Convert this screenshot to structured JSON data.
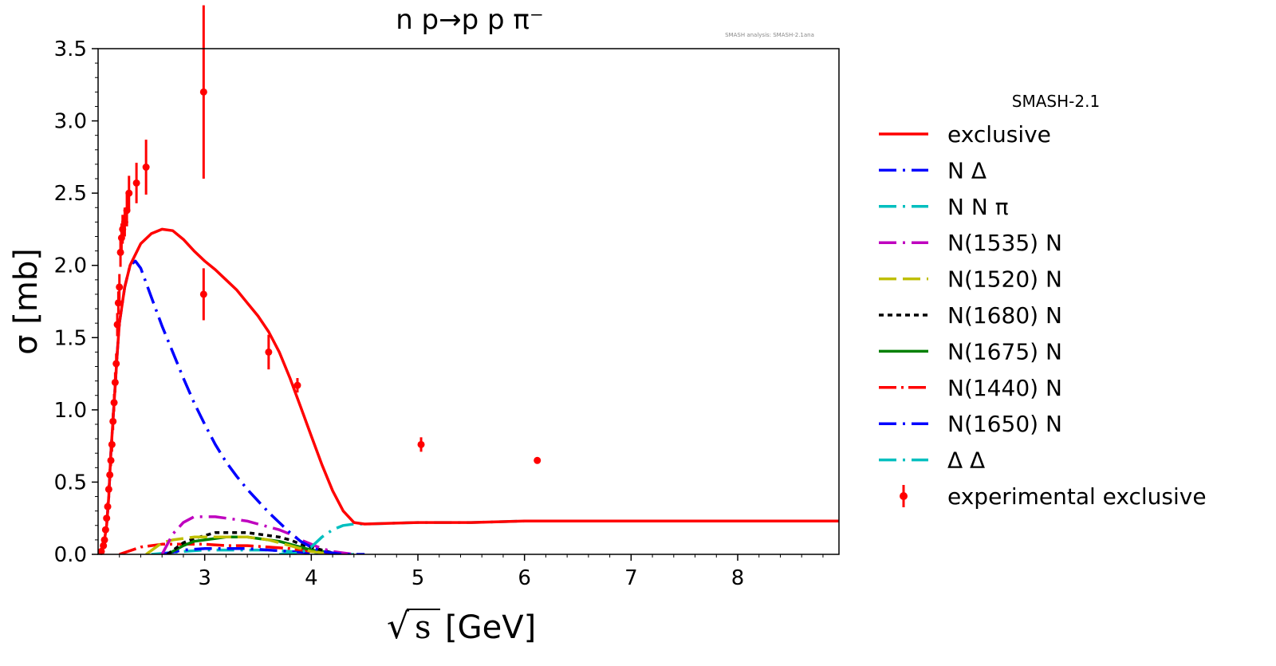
{
  "chart_data": {
    "type": "line",
    "title": "n p→p p π⁻",
    "watermark": "SMASH analysis: SMASH-2.1ana",
    "xlabel_root": "√",
    "xlabel_s": "s",
    "xlabel_unit": "[GeV]",
    "ylabel": "σ [mb]",
    "xlim": [
      2.0,
      8.95
    ],
    "ylim": [
      0.0,
      3.5
    ],
    "x_ticks": [
      3,
      4,
      5,
      6,
      7,
      8
    ],
    "x_tick_labels": [
      "3",
      "4",
      "5",
      "6",
      "7",
      "8"
    ],
    "y_ticks": [
      0.0,
      0.5,
      1.0,
      1.5,
      2.0,
      2.5,
      3.0,
      3.5
    ],
    "y_tick_labels": [
      "0.0",
      "0.5",
      "1.0",
      "1.5",
      "2.0",
      "2.5",
      "3.0",
      "3.5"
    ],
    "legend_title": "SMASH-2.1",
    "series": [
      {
        "name": "exclusive",
        "color": "#ff0000",
        "dash": "solid",
        "width": 3.5,
        "x": [
          2.02,
          2.05,
          2.08,
          2.1,
          2.12,
          2.15,
          2.18,
          2.2,
          2.25,
          2.3,
          2.4,
          2.5,
          2.6,
          2.7,
          2.8,
          2.9,
          3.0,
          3.1,
          3.2,
          3.3,
          3.4,
          3.5,
          3.6,
          3.7,
          3.8,
          3.9,
          4.0,
          4.1,
          4.2,
          4.3,
          4.4,
          4.5,
          5.0,
          5.5,
          6.0,
          6.5,
          7.0,
          7.5,
          8.0,
          8.5,
          8.95
        ],
        "y": [
          0.0,
          0.05,
          0.2,
          0.4,
          0.7,
          1.05,
          1.4,
          1.6,
          1.85,
          2.0,
          2.15,
          2.22,
          2.25,
          2.24,
          2.18,
          2.1,
          2.03,
          1.97,
          1.9,
          1.83,
          1.74,
          1.65,
          1.54,
          1.4,
          1.22,
          1.02,
          0.82,
          0.62,
          0.44,
          0.3,
          0.22,
          0.21,
          0.22,
          0.22,
          0.23,
          0.23,
          0.23,
          0.23,
          0.23,
          0.23,
          0.23
        ]
      },
      {
        "name": "N Δ",
        "color": "#0000ff",
        "dash": "dashdot",
        "width": 3.5,
        "x": [
          2.02,
          2.05,
          2.08,
          2.1,
          2.12,
          2.15,
          2.18,
          2.2,
          2.25,
          2.3,
          2.35,
          2.4,
          2.5,
          2.6,
          2.7,
          2.8,
          2.9,
          3.0,
          3.1,
          3.2,
          3.3,
          3.4,
          3.5,
          3.6,
          3.7,
          3.8,
          3.9,
          4.0,
          4.1,
          4.2,
          4.3,
          4.4,
          4.5
        ],
        "y": [
          0.0,
          0.05,
          0.2,
          0.4,
          0.7,
          1.05,
          1.4,
          1.6,
          1.85,
          2.0,
          2.03,
          1.98,
          1.78,
          1.58,
          1.4,
          1.22,
          1.05,
          0.9,
          0.76,
          0.64,
          0.54,
          0.45,
          0.37,
          0.29,
          0.22,
          0.15,
          0.09,
          0.05,
          0.02,
          0.01,
          0.0,
          0.0,
          0.0
        ]
      },
      {
        "name": "N N π",
        "color": "#00bfbf",
        "dash": "dashdot",
        "width": 3.5,
        "x": [
          3.7,
          3.9,
          4.0,
          4.1,
          4.2,
          4.3,
          4.4,
          4.5,
          5.0,
          5.5,
          6.0,
          6.5,
          7.0,
          7.5,
          8.0,
          8.5,
          8.95
        ],
        "y": [
          0.0,
          0.01,
          0.05,
          0.12,
          0.17,
          0.2,
          0.21,
          0.21,
          0.22,
          0.22,
          0.23,
          0.23,
          0.23,
          0.23,
          0.23,
          0.23,
          0.23
        ]
      },
      {
        "name": "N(1535) N",
        "color": "#bf00bf",
        "dash": "dashdot",
        "width": 3.5,
        "x": [
          2.6,
          2.7,
          2.8,
          2.9,
          3.0,
          3.1,
          3.2,
          3.3,
          3.4,
          3.5,
          3.6,
          3.7,
          3.8,
          3.9,
          4.0,
          4.1,
          4.2,
          4.3,
          4.4
        ],
        "y": [
          0.0,
          0.14,
          0.22,
          0.26,
          0.26,
          0.26,
          0.25,
          0.24,
          0.23,
          0.21,
          0.19,
          0.17,
          0.14,
          0.1,
          0.07,
          0.04,
          0.02,
          0.01,
          0.0
        ]
      },
      {
        "name": "N(1520) N",
        "color": "#bfbf00",
        "dash": "dashed",
        "width": 3.5,
        "x": [
          2.45,
          2.6,
          2.7,
          2.8,
          2.9,
          3.0,
          3.1,
          3.2,
          3.3,
          3.4,
          3.5,
          3.6,
          3.7,
          3.8,
          3.9,
          4.0,
          4.1,
          4.2
        ],
        "y": [
          0.0,
          0.08,
          0.1,
          0.11,
          0.12,
          0.12,
          0.12,
          0.12,
          0.12,
          0.12,
          0.11,
          0.1,
          0.08,
          0.06,
          0.04,
          0.02,
          0.01,
          0.0
        ]
      },
      {
        "name": "N(1680) N",
        "color": "#000000",
        "dash": "dotted",
        "width": 3.5,
        "x": [
          2.65,
          2.8,
          2.9,
          3.0,
          3.1,
          3.2,
          3.3,
          3.4,
          3.5,
          3.6,
          3.7,
          3.8,
          3.9,
          4.0,
          4.1,
          4.2,
          4.3
        ],
        "y": [
          0.0,
          0.08,
          0.11,
          0.13,
          0.15,
          0.15,
          0.15,
          0.15,
          0.14,
          0.13,
          0.12,
          0.1,
          0.07,
          0.05,
          0.03,
          0.01,
          0.0
        ]
      },
      {
        "name": "N(1675) N",
        "color": "#008000",
        "dash": "solid",
        "width": 3.5,
        "x": [
          2.65,
          2.8,
          2.9,
          3.0,
          3.1,
          3.2,
          3.3,
          3.4,
          3.5,
          3.6,
          3.7,
          3.8,
          3.9,
          4.0,
          4.1,
          4.2,
          4.3
        ],
        "y": [
          0.0,
          0.06,
          0.09,
          0.1,
          0.11,
          0.12,
          0.12,
          0.12,
          0.11,
          0.1,
          0.09,
          0.07,
          0.05,
          0.03,
          0.02,
          0.01,
          0.0
        ]
      },
      {
        "name": "N(1440) N",
        "color": "#ff0000",
        "dash": "dashdotted",
        "width": 3.5,
        "x": [
          2.2,
          2.4,
          2.6,
          2.8,
          3.0,
          3.2,
          3.4,
          3.6,
          3.8,
          4.0,
          4.2,
          4.4
        ],
        "y": [
          0.0,
          0.05,
          0.07,
          0.07,
          0.07,
          0.06,
          0.06,
          0.05,
          0.04,
          0.02,
          0.01,
          0.0
        ]
      },
      {
        "name": "N(1650) N",
        "color": "#0000ff",
        "dash": "dashdot",
        "width": 3.5,
        "x": [
          2.6,
          2.8,
          3.0,
          3.2,
          3.4,
          3.6,
          3.8,
          4.0,
          4.2
        ],
        "y": [
          0.0,
          0.03,
          0.04,
          0.04,
          0.04,
          0.03,
          0.02,
          0.01,
          0.0
        ]
      },
      {
        "name": "Δ Δ",
        "color": "#00bfbf",
        "dash": "dashdot",
        "width": 3.5,
        "x": [
          2.5,
          2.8,
          3.0,
          3.2,
          3.4,
          3.6,
          3.8,
          4.0,
          4.2,
          4.4
        ],
        "y": [
          0.0,
          0.02,
          0.03,
          0.03,
          0.03,
          0.03,
          0.02,
          0.01,
          0.0,
          0.0
        ]
      }
    ],
    "experimental": {
      "name": "experimental exclusive",
      "color": "#ff0000",
      "points": [
        {
          "x": 2.03,
          "y": 0.02,
          "err": 0.01
        },
        {
          "x": 2.05,
          "y": 0.06,
          "err": 0.01
        },
        {
          "x": 2.06,
          "y": 0.1,
          "err": 0.01
        },
        {
          "x": 2.07,
          "y": 0.17,
          "err": 0.02
        },
        {
          "x": 2.08,
          "y": 0.25,
          "err": 0.02
        },
        {
          "x": 2.09,
          "y": 0.33,
          "err": 0.03
        },
        {
          "x": 2.1,
          "y": 0.45,
          "err": 0.03
        },
        {
          "x": 2.11,
          "y": 0.55,
          "err": 0.04
        },
        {
          "x": 2.12,
          "y": 0.65,
          "err": 0.04
        },
        {
          "x": 2.13,
          "y": 0.76,
          "err": 0.05
        },
        {
          "x": 2.14,
          "y": 0.92,
          "err": 0.06
        },
        {
          "x": 2.15,
          "y": 1.05,
          "err": 0.06
        },
        {
          "x": 2.16,
          "y": 1.19,
          "err": 0.07
        },
        {
          "x": 2.17,
          "y": 1.32,
          "err": 0.07
        },
        {
          "x": 2.18,
          "y": 1.59,
          "err": 0.08
        },
        {
          "x": 2.19,
          "y": 1.74,
          "err": 0.08
        },
        {
          "x": 2.2,
          "y": 1.85,
          "err": 0.09
        },
        {
          "x": 2.21,
          "y": 2.09,
          "err": 0.1
        },
        {
          "x": 2.22,
          "y": 2.19,
          "err": 0.1
        },
        {
          "x": 2.23,
          "y": 2.25,
          "err": 0.1
        },
        {
          "x": 2.25,
          "y": 2.3,
          "err": 0.1
        },
        {
          "x": 2.27,
          "y": 2.38,
          "err": 0.11
        },
        {
          "x": 2.29,
          "y": 2.5,
          "err": 0.12
        },
        {
          "x": 2.36,
          "y": 2.57,
          "err": 0.14
        },
        {
          "x": 2.45,
          "y": 2.68,
          "err": 0.19
        },
        {
          "x": 2.99,
          "y": 3.2,
          "err": 0.6
        },
        {
          "x": 2.99,
          "y": 1.8,
          "err": 0.18
        },
        {
          "x": 3.6,
          "y": 1.4,
          "err": 0.12
        },
        {
          "x": 3.87,
          "y": 1.17,
          "err": 0.05
        },
        {
          "x": 5.03,
          "y": 0.76,
          "err": 0.05
        },
        {
          "x": 6.12,
          "y": 0.65,
          "err": 0.02
        }
      ]
    }
  }
}
